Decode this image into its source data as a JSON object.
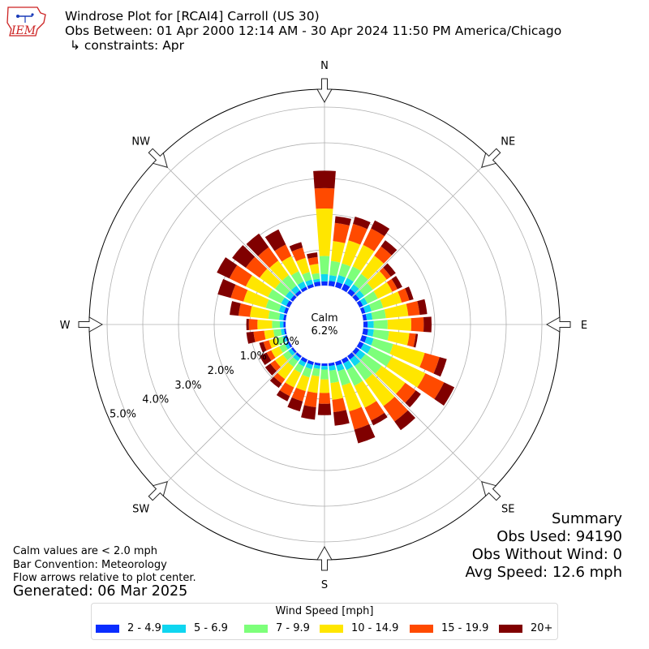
{
  "header": {
    "title": "Windrose Plot for [RCAI4] Carroll (US 30)",
    "subtitle": "Obs Between: 01 Apr 2000 12:14 AM - 30 Apr 2024 11:50 PM America/Chicago",
    "constraints": "↳ constraints: Apr",
    "logo_text": "IEM"
  },
  "notes": {
    "calm_note": "Calm values are < 2.0 mph",
    "bar_note": "Bar Convention: Meteorology",
    "flow_note": "Flow arrows relative to plot center.",
    "generated": "Generated: 06 Mar 2025"
  },
  "summary": {
    "title": "Summary",
    "obs_used": "Obs Used: 94190",
    "obs_without_wind": "Obs Without Wind: 0",
    "avg_speed": "Avg Speed: 12.6 mph"
  },
  "center": {
    "label": "Calm",
    "value": "6.2%"
  },
  "colors": {
    "axis": "#000000",
    "grid": "#b0b0b0",
    "arrow_fill": "#ffffff",
    "logo": "#cc2222"
  },
  "legend": {
    "title": "Wind Speed [mph]",
    "items": [
      {
        "label": "2 - 4.9",
        "color": "#0a2dff"
      },
      {
        "label": "5 - 6.9",
        "color": "#0fd6f0"
      },
      {
        "label": "7 - 9.9",
        "color": "#7dff7a"
      },
      {
        "label": "10 - 14.9",
        "color": "#ffe600"
      },
      {
        "label": "15 - 19.9",
        "color": "#ff4a00"
      },
      {
        "label": "20+",
        "color": "#800000"
      }
    ]
  },
  "chart_data": {
    "type": "windrose",
    "title": "Windrose Plot for [RCAI4] Carroll (US 30)",
    "bar_convention": "Meteorology",
    "calm_percent": 6.2,
    "radial_axis": {
      "unit": "%",
      "ticks": [
        0.0,
        1.0,
        2.0,
        3.0,
        4.0,
        5.0
      ],
      "tick_labels": [
        "0.0%",
        "1.0%",
        "2.0%",
        "3.0%",
        "4.0%",
        "5.0%"
      ],
      "max": 5.5
    },
    "compass_labels": [
      "N",
      "NE",
      "E",
      "SE",
      "S",
      "SW",
      "W",
      "NW"
    ],
    "directions_deg": [
      0,
      10,
      20,
      30,
      40,
      50,
      60,
      70,
      80,
      90,
      100,
      110,
      120,
      130,
      140,
      150,
      160,
      170,
      180,
      190,
      200,
      210,
      220,
      230,
      240,
      250,
      260,
      270,
      280,
      290,
      300,
      310,
      320,
      330,
      340,
      350
    ],
    "bins": [
      "2 - 4.9",
      "5 - 6.9",
      "7 - 9.9",
      "10 - 14.9",
      "15 - 19.9",
      "20+"
    ],
    "cumulative_percent": [
      [
        0.12,
        0.32,
        0.83,
        2.16,
        2.73,
        3.22
      ],
      [
        0.14,
        0.3,
        0.7,
        1.26,
        1.77,
        1.96
      ],
      [
        0.15,
        0.35,
        0.69,
        1.36,
        1.84,
        2.05
      ],
      [
        0.18,
        0.36,
        0.72,
        1.39,
        1.9,
        2.15
      ],
      [
        0.14,
        0.3,
        0.66,
        1.29,
        1.61,
        1.82
      ],
      [
        0.12,
        0.28,
        0.58,
        1.06,
        1.2,
        1.37
      ],
      [
        0.11,
        0.25,
        0.57,
        1.02,
        1.18,
        1.33
      ],
      [
        0.1,
        0.28,
        0.62,
        1.16,
        1.38,
        1.5
      ],
      [
        0.1,
        0.26,
        0.64,
        1.27,
        1.59,
        1.8
      ],
      [
        0.12,
        0.29,
        0.68,
        1.34,
        1.69,
        1.91
      ],
      [
        0.14,
        0.3,
        0.73,
        1.3,
        1.48,
        1.54
      ],
      [
        0.14,
        0.34,
        0.91,
        1.83,
        2.26,
        2.47
      ],
      [
        0.13,
        0.36,
        1.0,
        2.05,
        2.63,
        2.95
      ],
      [
        0.12,
        0.32,
        0.89,
        1.7,
        2.06,
        2.24
      ],
      [
        0.12,
        0.35,
        0.84,
        1.73,
        2.26,
        2.56
      ],
      [
        0.12,
        0.33,
        0.82,
        1.5,
        1.9,
        2.05
      ],
      [
        0.11,
        0.27,
        0.69,
        1.44,
        1.97,
        2.37
      ],
      [
        0.08,
        0.21,
        0.56,
        1.03,
        1.38,
        1.76
      ],
      [
        0.07,
        0.17,
        0.45,
        0.83,
        1.13,
        1.45
      ],
      [
        0.07,
        0.16,
        0.37,
        0.84,
        1.24,
        1.59
      ],
      [
        0.09,
        0.21,
        0.45,
        0.85,
        1.15,
        1.44
      ],
      [
        0.1,
        0.22,
        0.42,
        0.87,
        1.14,
        1.3
      ],
      [
        0.07,
        0.18,
        0.38,
        0.8,
        0.95,
        1.1
      ],
      [
        0.06,
        0.16,
        0.35,
        0.62,
        0.78,
        0.96
      ],
      [
        0.06,
        0.15,
        0.32,
        0.57,
        0.71,
        0.93
      ],
      [
        0.06,
        0.13,
        0.32,
        0.53,
        0.69,
        0.81
      ],
      [
        0.05,
        0.14,
        0.35,
        0.61,
        0.91,
        1.11
      ],
      [
        0.06,
        0.16,
        0.38,
        0.79,
        1.03,
        1.1
      ],
      [
        0.07,
        0.19,
        0.49,
        1.01,
        1.33,
        1.58
      ],
      [
        0.09,
        0.24,
        0.62,
        1.27,
        1.64,
        2.02
      ],
      [
        0.1,
        0.26,
        0.67,
        1.36,
        1.87,
        2.26
      ],
      [
        0.09,
        0.26,
        0.62,
        1.15,
        1.63,
        2.1
      ],
      [
        0.09,
        0.25,
        0.62,
        1.12,
        1.58,
        2.05
      ],
      [
        0.09,
        0.25,
        0.57,
        1.04,
        1.4,
        1.87
      ],
      [
        0.09,
        0.22,
        0.44,
        0.85,
        1.15,
        1.31
      ],
      [
        0.12,
        0.2,
        0.36,
        0.62,
        0.81,
        0.94
      ]
    ]
  }
}
